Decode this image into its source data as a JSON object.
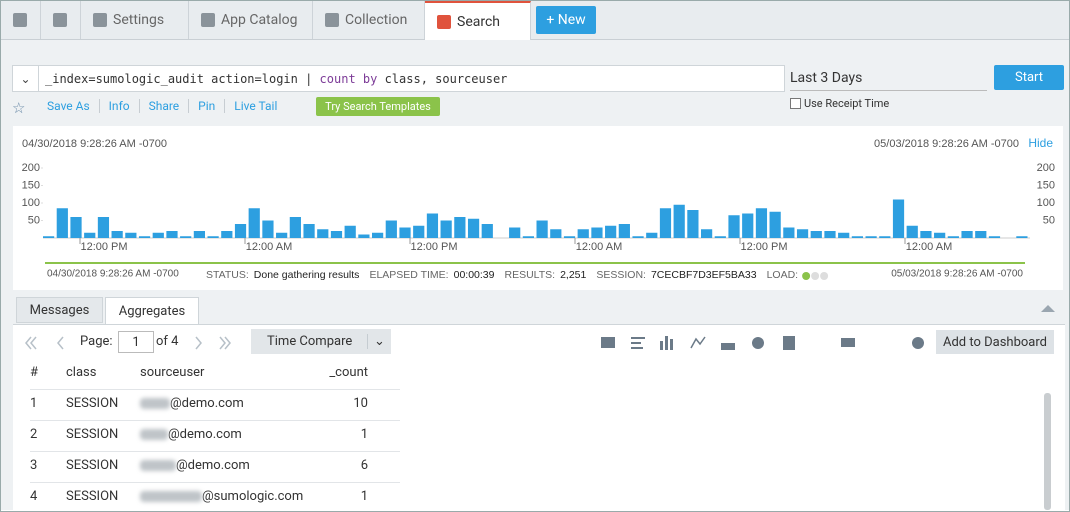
{
  "nav": {
    "tabs": [
      "Settings",
      "App Catalog",
      "Collection",
      "Search"
    ],
    "active_tab": 3,
    "new_button": "New"
  },
  "search": {
    "query_parts": [
      {
        "text": "_index=sumologic_audit action=login | ",
        "keyword": false
      },
      {
        "text": "count by",
        "keyword": true
      },
      {
        "text": " class, sourceuser",
        "keyword": false
      }
    ],
    "time_range": "Last 3 Days",
    "start_button": "Start",
    "use_receipt_time": "Use Receipt Time",
    "actions": [
      "Save As",
      "Info",
      "Share",
      "Pin",
      "Live Tail"
    ],
    "templates_button": "Try Search Templates"
  },
  "chart_data": {
    "type": "bar",
    "start_label": "04/30/2018 9:28:26 AM -0700",
    "end_label": "05/03/2018 9:28:26 AM -0700",
    "hide": "Hide",
    "x_tick_labels": [
      "12:00 PM",
      "12:00 AM",
      "12:00 PM",
      "12:00 AM",
      "12:00 PM",
      "12:00 AM"
    ],
    "values": [
      5,
      85,
      60,
      15,
      60,
      20,
      15,
      5,
      15,
      20,
      5,
      20,
      5,
      20,
      40,
      85,
      50,
      15,
      60,
      40,
      25,
      20,
      35,
      10,
      15,
      50,
      30,
      35,
      70,
      50,
      60,
      55,
      40,
      null,
      30,
      5,
      50,
      25,
      5,
      25,
      30,
      35,
      40,
      5,
      15,
      85,
      95,
      80,
      25,
      5,
      65,
      70,
      85,
      75,
      30,
      25,
      20,
      20,
      15,
      5,
      5,
      5,
      110,
      35,
      20,
      15,
      5,
      20,
      20,
      5,
      null,
      5
    ],
    "color": "#2d9fe0",
    "ylim": [
      0,
      200
    ],
    "yticks": [
      50,
      100,
      150,
      200
    ]
  },
  "status": {
    "start_label": "04/30/2018 9:28:26 AM -0700",
    "end_label": "05/03/2018 9:28:26 AM -0700",
    "items": [
      {
        "label": "STATUS:",
        "value": "Done gathering results"
      },
      {
        "label": "ELAPSED TIME:",
        "value": "00:00:39"
      },
      {
        "label": "RESULTS:",
        "value": "2,251"
      },
      {
        "label": "SESSION:",
        "value": "7CECBF7D3EF5BA33"
      }
    ],
    "load_label": "LOAD:"
  },
  "results": {
    "tabs": [
      "Messages",
      "Aggregates"
    ],
    "page_label": "Page:",
    "page": 1,
    "of_label": "of 4",
    "time_compare": "Time Compare",
    "add_dashboard": "Add to Dashboard"
  },
  "table": {
    "columns": [
      "#",
      "class",
      "sourceuser",
      "_count"
    ],
    "rows": [
      [
        1,
        "SESSION",
        "@demo.com",
        10
      ],
      [
        2,
        "SESSION",
        "@demo.com",
        1
      ],
      [
        3,
        "SESSION",
        "@demo.com",
        6
      ],
      [
        4,
        "SESSION",
        "@sumologic.com",
        1
      ]
    ]
  }
}
